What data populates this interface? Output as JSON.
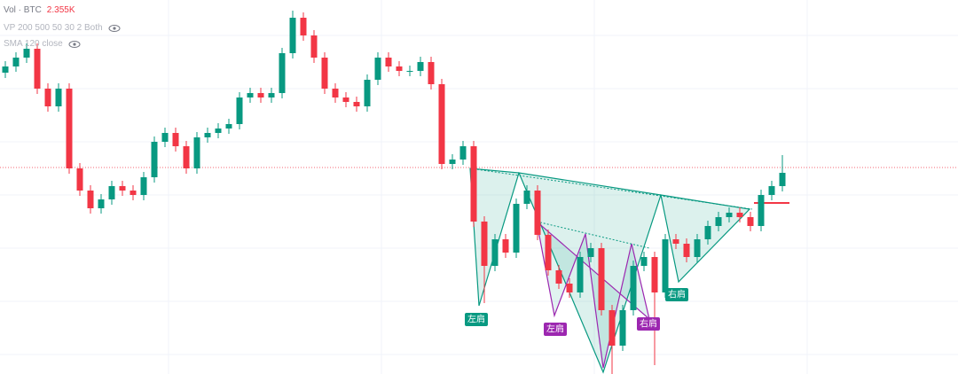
{
  "header": {
    "volume_label": "Vol · BTC",
    "volume_value": "2.355K",
    "indicators": [
      "VP 200 500 50 30 2 Both",
      "SMA 120 close"
    ]
  },
  "chart_data": {
    "type": "candlestick",
    "open": [
      340,
      347,
      357,
      367,
      322,
      302,
      322,
      232,
      207,
      187,
      197,
      212,
      207,
      202,
      222,
      262,
      272,
      257,
      232,
      267,
      272,
      277,
      282,
      312,
      317,
      312,
      317,
      362,
      402,
      382,
      357,
      322,
      312,
      307,
      302,
      332,
      357,
      347,
      342,
      342,
      352,
      327,
      237,
      242,
      257,
      172,
      122,
      152,
      137,
      192,
      207,
      157,
      117,
      102,
      92,
      132,
      142,
      72,
      32,
      72,
      122,
      132,
      92,
      152,
      147,
      132,
      152,
      167,
      177,
      182,
      177,
      167,
      202,
      212
    ],
    "high": [
      353,
      363,
      373,
      373,
      328,
      328,
      328,
      238,
      213,
      203,
      218,
      218,
      213,
      228,
      268,
      278,
      278,
      263,
      273,
      278,
      283,
      288,
      318,
      323,
      323,
      323,
      368,
      410,
      408,
      388,
      363,
      328,
      318,
      313,
      338,
      363,
      363,
      353,
      348,
      358,
      358,
      333,
      248,
      263,
      263,
      178,
      158,
      158,
      198,
      213,
      213,
      163,
      123,
      108,
      138,
      148,
      148,
      78,
      78,
      128,
      138,
      138,
      158,
      158,
      153,
      158,
      173,
      183,
      188,
      188,
      183,
      208,
      218,
      247
    ],
    "low": [
      334,
      341,
      351,
      316,
      296,
      296,
      226,
      201,
      181,
      181,
      191,
      201,
      196,
      196,
      216,
      256,
      251,
      226,
      226,
      261,
      266,
      271,
      276,
      306,
      306,
      306,
      311,
      356,
      376,
      351,
      316,
      306,
      301,
      296,
      296,
      326,
      341,
      336,
      336,
      336,
      321,
      231,
      231,
      236,
      166,
      80,
      116,
      131,
      131,
      186,
      151,
      111,
      96,
      86,
      86,
      126,
      66,
      0,
      26,
      66,
      116,
      10,
      86,
      141,
      126,
      126,
      146,
      161,
      171,
      171,
      161,
      161,
      196,
      206
    ],
    "close": [
      347,
      357,
      367,
      322,
      302,
      322,
      232,
      207,
      187,
      197,
      212,
      207,
      202,
      222,
      262,
      272,
      257,
      232,
      267,
      272,
      277,
      282,
      312,
      317,
      312,
      317,
      362,
      402,
      382,
      357,
      322,
      312,
      307,
      302,
      332,
      357,
      347,
      342,
      342,
      352,
      327,
      237,
      242,
      257,
      172,
      122,
      152,
      137,
      192,
      207,
      157,
      117,
      102,
      92,
      132,
      142,
      72,
      32,
      72,
      122,
      132,
      92,
      152,
      147,
      132,
      152,
      167,
      177,
      182,
      177,
      167,
      202,
      212,
      227
    ],
    "ylim": [
      0,
      422
    ],
    "up_color": "#089981",
    "down_color": "#f23645"
  },
  "annotations": [
    "左肩",
    "左肩",
    "右肩",
    "右肩"
  ]
}
